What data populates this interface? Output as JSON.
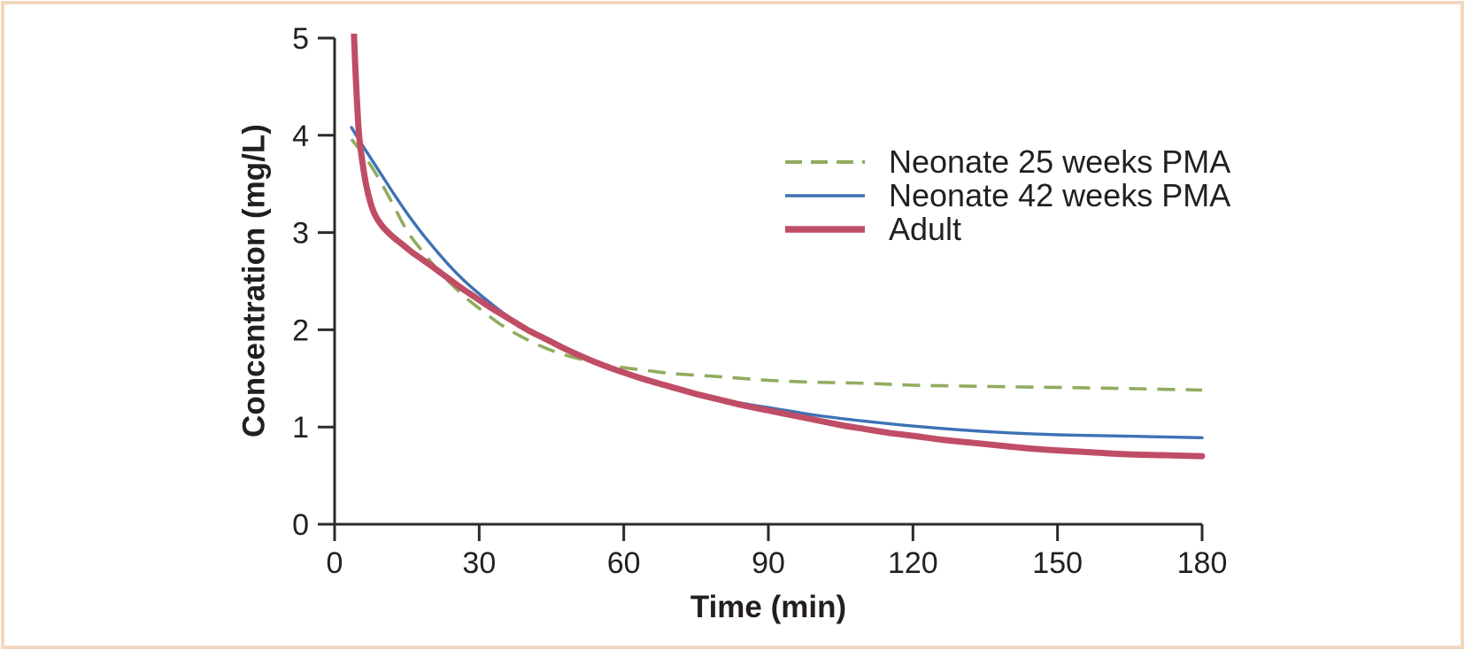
{
  "figure": {
    "border_color": "#f2d7bf",
    "background_color": "#ffffff",
    "text_color": "#231f20",
    "axis_color": "#2b2b2b"
  },
  "chart_data": {
    "type": "line",
    "title": "",
    "xlabel": "Time (min)",
    "ylabel": "Concentration (mg/L)",
    "xlim": [
      0,
      180
    ],
    "ylim": [
      0,
      5
    ],
    "x_ticks": [
      0,
      30,
      60,
      90,
      120,
      150,
      180
    ],
    "y_ticks": [
      0,
      1,
      2,
      3,
      4,
      5
    ],
    "grid": false,
    "legend_position": "upper-right-inside",
    "series": [
      {
        "name": "Neonate 25 weeks PMA",
        "color": "#90ac5f",
        "style": "dashed",
        "points": [
          [
            3.5,
            3.96
          ],
          [
            6,
            3.8
          ],
          [
            9,
            3.57
          ],
          [
            12,
            3.3
          ],
          [
            15,
            3.02
          ],
          [
            18,
            2.82
          ],
          [
            21,
            2.64
          ],
          [
            24,
            2.48
          ],
          [
            27,
            2.34
          ],
          [
            30,
            2.22
          ],
          [
            34,
            2.07
          ],
          [
            38,
            1.95
          ],
          [
            42,
            1.85
          ],
          [
            46,
            1.77
          ],
          [
            50,
            1.71
          ],
          [
            55,
            1.65
          ],
          [
            60,
            1.61
          ],
          [
            65,
            1.58
          ],
          [
            70,
            1.55
          ],
          [
            76,
            1.53
          ],
          [
            82,
            1.51
          ],
          [
            90,
            1.48
          ],
          [
            100,
            1.46
          ],
          [
            110,
            1.45
          ],
          [
            120,
            1.43
          ],
          [
            132,
            1.42
          ],
          [
            145,
            1.41
          ],
          [
            160,
            1.4
          ],
          [
            170,
            1.39
          ],
          [
            180,
            1.38
          ]
        ]
      },
      {
        "name": "Neonate 42 weeks PMA",
        "color": "#3e72b4",
        "style": "solid",
        "points": [
          [
            3.5,
            4.08
          ],
          [
            6,
            3.88
          ],
          [
            9,
            3.65
          ],
          [
            12,
            3.42
          ],
          [
            15,
            3.2
          ],
          [
            18,
            3.0
          ],
          [
            21,
            2.82
          ],
          [
            24,
            2.65
          ],
          [
            27,
            2.5
          ],
          [
            30,
            2.37
          ],
          [
            34,
            2.21
          ],
          [
            38,
            2.07
          ],
          [
            42,
            1.95
          ],
          [
            46,
            1.84
          ],
          [
            50,
            1.74
          ],
          [
            55,
            1.64
          ],
          [
            60,
            1.55
          ],
          [
            65,
            1.47
          ],
          [
            70,
            1.4
          ],
          [
            75,
            1.34
          ],
          [
            80,
            1.29
          ],
          [
            85,
            1.24
          ],
          [
            90,
            1.2
          ],
          [
            95,
            1.16
          ],
          [
            100,
            1.12
          ],
          [
            110,
            1.06
          ],
          [
            120,
            1.01
          ],
          [
            130,
            0.97
          ],
          [
            140,
            0.94
          ],
          [
            150,
            0.92
          ],
          [
            160,
            0.91
          ],
          [
            170,
            0.9
          ],
          [
            180,
            0.89
          ]
        ]
      },
      {
        "name": "Adult",
        "color": "#c04d66",
        "style": "solid-thick",
        "points": [
          [
            3.8,
            5.35
          ],
          [
            4.3,
            4.7
          ],
          [
            5,
            4.05
          ],
          [
            5.7,
            3.75
          ],
          [
            6.5,
            3.5
          ],
          [
            7.5,
            3.3
          ],
          [
            8.5,
            3.17
          ],
          [
            10,
            3.06
          ],
          [
            12,
            2.96
          ],
          [
            14,
            2.88
          ],
          [
            16,
            2.8
          ],
          [
            18,
            2.73
          ],
          [
            20,
            2.66
          ],
          [
            23,
            2.55
          ],
          [
            26,
            2.44
          ],
          [
            29,
            2.34
          ],
          [
            32,
            2.24
          ],
          [
            36,
            2.12
          ],
          [
            40,
            2.0
          ],
          [
            44,
            1.9
          ],
          [
            48,
            1.8
          ],
          [
            52,
            1.71
          ],
          [
            56,
            1.63
          ],
          [
            60,
            1.56
          ],
          [
            65,
            1.48
          ],
          [
            70,
            1.41
          ],
          [
            75,
            1.34
          ],
          [
            80,
            1.28
          ],
          [
            85,
            1.22
          ],
          [
            90,
            1.17
          ],
          [
            95,
            1.12
          ],
          [
            100,
            1.07
          ],
          [
            105,
            1.02
          ],
          [
            110,
            0.98
          ],
          [
            115,
            0.94
          ],
          [
            120,
            0.91
          ],
          [
            126,
            0.87
          ],
          [
            132,
            0.84
          ],
          [
            138,
            0.81
          ],
          [
            144,
            0.78
          ],
          [
            150,
            0.76
          ],
          [
            157,
            0.74
          ],
          [
            164,
            0.72
          ],
          [
            172,
            0.71
          ],
          [
            180,
            0.7
          ]
        ]
      }
    ]
  }
}
